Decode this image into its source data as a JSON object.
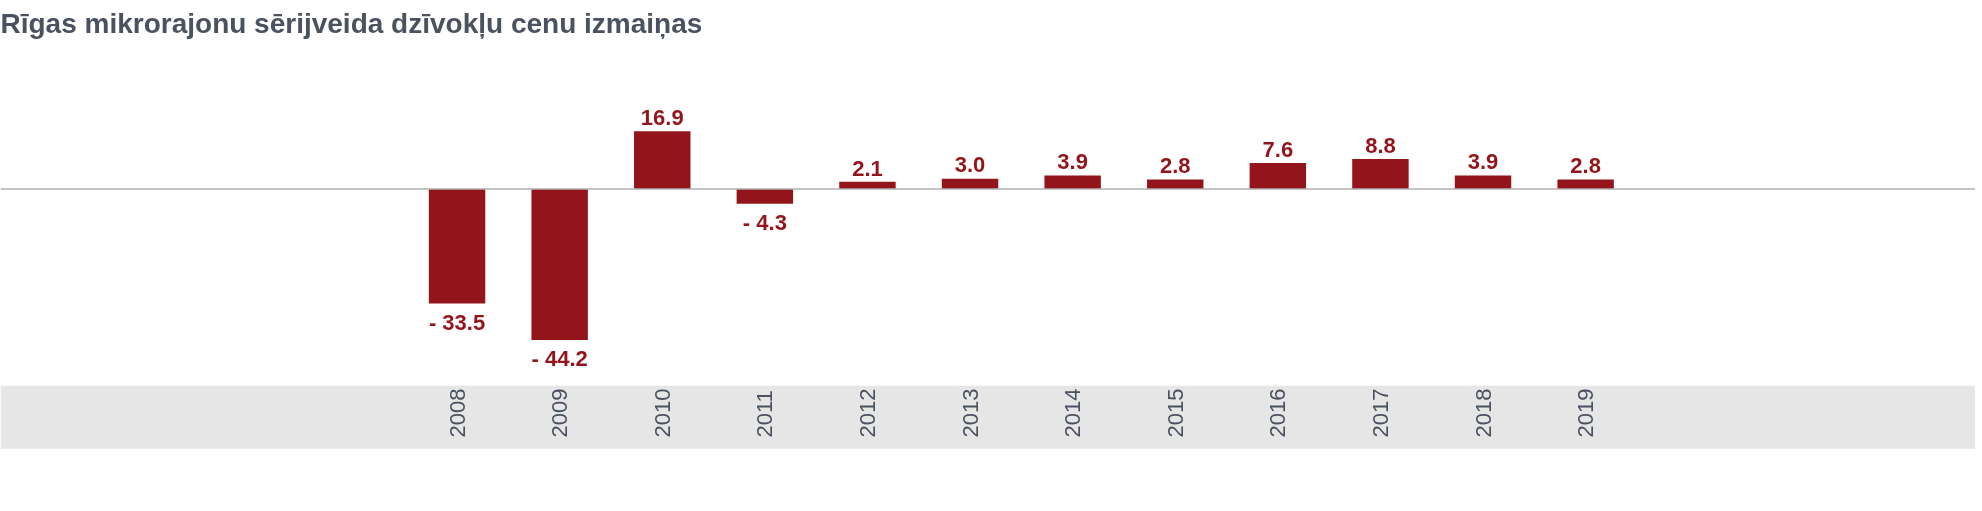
{
  "chart_data": {
    "type": "bar",
    "title": "Rīgas mikrorajonu sērijveida dzīvokļu cenu izmaiņas",
    "categories": [
      "2008",
      "2009",
      "2010",
      "2011",
      "2012",
      "2013",
      "2014",
      "2015",
      "2016",
      "2017",
      "2018",
      "2019"
    ],
    "values": [
      -33.5,
      -44.2,
      16.9,
      -4.3,
      2.1,
      3.0,
      3.9,
      2.8,
      7.6,
      8.8,
      3.9,
      2.8
    ],
    "value_labels": [
      "- 33.5",
      "- 44.2",
      "16.9",
      "- 4.3",
      "2.1",
      "3.0",
      "3.9",
      "2.8",
      "7.6",
      "8.8",
      "3.9",
      "2.8"
    ],
    "color": "#93141b",
    "grid": false
  }
}
